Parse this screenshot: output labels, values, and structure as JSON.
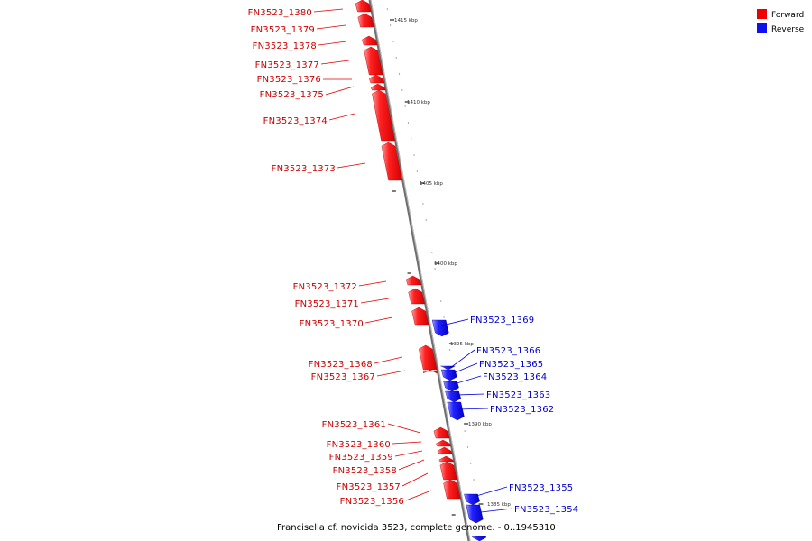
{
  "colors": {
    "forward": "#ee1111",
    "forward_light": "#ff8080",
    "reverse": "#1a1aee",
    "reverse_light": "#8080ff",
    "backbone": "#8a8a8a"
  },
  "legend": {
    "forward_label": "Forward",
    "reverse_label": "Reverse"
  },
  "caption": "Francisella cf. novicida 3523, complete genome.  - 0..1945310",
  "tick_labels": [
    "1415 kbp",
    "1410 kbp",
    "1405 kbp",
    "1400 kbp",
    "1395 kbp",
    "1390 kbp",
    "1385 kbp"
  ],
  "genes_forward": [
    {
      "id": "FN3523_1380"
    },
    {
      "id": "FN3523_1379"
    },
    {
      "id": "FN3523_1378"
    },
    {
      "id": "FN3523_1377"
    },
    {
      "id": "FN3523_1376"
    },
    {
      "id": "FN3523_1375"
    },
    {
      "id": "FN3523_1374"
    },
    {
      "id": "FN3523_1373"
    },
    {
      "id": "FN3523_1372"
    },
    {
      "id": "FN3523_1371"
    },
    {
      "id": "FN3523_1370"
    },
    {
      "id": "FN3523_1368"
    },
    {
      "id": "FN3523_1367"
    },
    {
      "id": "FN3523_1361"
    },
    {
      "id": "FN3523_1360"
    },
    {
      "id": "FN3523_1359"
    },
    {
      "id": "FN3523_1358"
    },
    {
      "id": "FN3523_1357"
    },
    {
      "id": "FN3523_1356"
    }
  ],
  "genes_reverse": [
    {
      "id": "FN3523_1369"
    },
    {
      "id": "FN3523_1366"
    },
    {
      "id": "FN3523_1365"
    },
    {
      "id": "FN3523_1364"
    },
    {
      "id": "FN3523_1363"
    },
    {
      "id": "FN3523_1362"
    },
    {
      "id": "FN3523_1355"
    },
    {
      "id": "FN3523_1354"
    }
  ]
}
